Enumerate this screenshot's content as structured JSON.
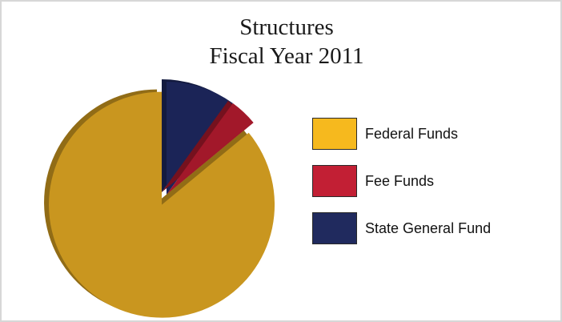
{
  "chart_data": {
    "type": "pie",
    "title": "Structures",
    "subtitle": "Fiscal Year 2011",
    "legend_position": "right",
    "exploded_slice": "Federal Funds",
    "categories": [
      "Federal Funds",
      "Fee Funds",
      "State General Fund"
    ],
    "values": [
      86,
      4,
      10
    ],
    "colors": [
      "#c9961f",
      "#a2182a",
      "#1b2457"
    ],
    "legend_colors": [
      "#f6b91e",
      "#c21f34",
      "#202a5e"
    ]
  }
}
